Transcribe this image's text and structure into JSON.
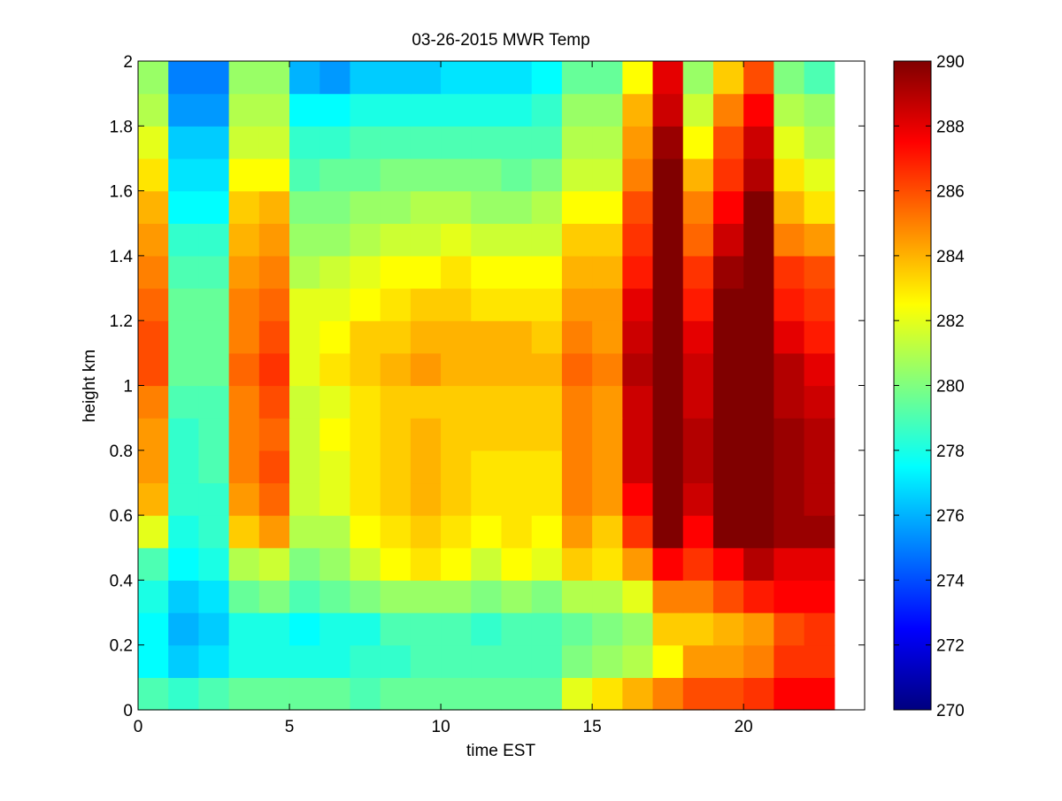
{
  "chart_data": {
    "type": "heatmap",
    "title": "03-26-2015 MWR Temp",
    "xlabel": "time EST",
    "ylabel": "height km",
    "xlim": [
      0,
      24
    ],
    "ylim": [
      0,
      2
    ],
    "x_ticks": [
      0,
      5,
      10,
      15,
      20
    ],
    "y_ticks": [
      0,
      0.2,
      0.4,
      0.6,
      0.8,
      1,
      1.2,
      1.4,
      1.6,
      1.8,
      2
    ],
    "colorbar": {
      "min": 270,
      "max": 290,
      "ticks": [
        270,
        272,
        274,
        276,
        278,
        280,
        282,
        284,
        286,
        288,
        290
      ],
      "colormap": "jet"
    },
    "time_hours": [
      0,
      1,
      2,
      3,
      4,
      5,
      6,
      7,
      8,
      9,
      10,
      11,
      12,
      13,
      14,
      15,
      16,
      17,
      18,
      19,
      20,
      21,
      22,
      23
    ],
    "height_km": [
      0,
      0.1,
      0.2,
      0.3,
      0.4,
      0.5,
      0.6,
      0.7,
      0.8,
      0.9,
      1.0,
      1.1,
      1.2,
      1.3,
      1.4,
      1.5,
      1.6,
      1.7,
      1.8,
      1.9,
      2.0
    ],
    "temperature_K": [
      [
        279.0,
        278.5,
        279.0,
        279.5,
        279.5,
        279.5,
        279.5,
        279.0,
        279.5,
        279.5,
        279.5,
        279.5,
        279.5,
        279.5,
        282.0,
        283.0,
        284.0,
        285.0,
        286.0,
        286.0,
        286.5,
        287.5,
        287.5,
        288.0
      ],
      [
        277.5,
        276.5,
        277.0,
        278.0,
        278.0,
        278.0,
        278.0,
        278.5,
        278.5,
        279.0,
        279.0,
        279.0,
        279.0,
        279.0,
        280.0,
        280.5,
        281.0,
        282.5,
        284.5,
        284.5,
        285.0,
        286.5,
        286.5,
        287.0
      ],
      [
        277.5,
        276.0,
        276.5,
        278.0,
        278.0,
        277.5,
        278.0,
        278.0,
        279.0,
        279.0,
        279.0,
        278.5,
        279.0,
        279.0,
        279.5,
        280.0,
        280.5,
        283.5,
        283.5,
        284.0,
        284.5,
        286.0,
        286.5,
        286.5
      ],
      [
        278.0,
        276.5,
        277.0,
        279.5,
        280.0,
        279.0,
        279.5,
        280.0,
        280.5,
        280.5,
        280.5,
        280.0,
        280.5,
        280.0,
        281.0,
        281.0,
        282.0,
        285.0,
        285.0,
        286.0,
        287.0,
        287.5,
        287.5,
        287.5
      ],
      [
        279.0,
        277.5,
        278.0,
        281.0,
        281.5,
        280.0,
        280.5,
        281.5,
        282.5,
        283.0,
        282.5,
        281.5,
        282.5,
        282.0,
        283.5,
        283.0,
        284.5,
        287.5,
        286.5,
        287.5,
        289.0,
        288.0,
        288.0,
        289.0
      ],
      [
        282.0,
        278.0,
        278.5,
        283.5,
        284.5,
        281.0,
        281.0,
        282.5,
        283.0,
        283.5,
        283.0,
        282.5,
        283.0,
        282.5,
        284.5,
        283.5,
        286.5,
        290.0,
        287.5,
        290.0,
        290.0,
        289.5,
        289.5,
        289.5
      ],
      [
        284.0,
        278.5,
        278.5,
        284.5,
        285.5,
        281.5,
        282.0,
        283.0,
        283.5,
        284.0,
        283.5,
        283.0,
        283.0,
        283.0,
        285.0,
        284.5,
        287.5,
        290.0,
        288.5,
        290.0,
        290.0,
        289.5,
        289.0,
        289.5
      ],
      [
        284.5,
        278.5,
        279.0,
        285.0,
        286.0,
        281.5,
        282.0,
        283.0,
        283.5,
        284.0,
        283.5,
        283.0,
        283.0,
        283.0,
        285.0,
        284.5,
        288.5,
        290.0,
        289.0,
        290.0,
        290.0,
        289.5,
        289.0,
        289.5
      ],
      [
        284.5,
        278.5,
        279.0,
        285.0,
        285.5,
        281.5,
        282.5,
        283.0,
        283.5,
        284.0,
        283.5,
        283.5,
        283.5,
        283.5,
        285.0,
        284.5,
        288.5,
        290.0,
        289.0,
        290.0,
        290.0,
        289.5,
        289.0,
        289.5
      ],
      [
        285.0,
        279.0,
        279.0,
        285.0,
        286.0,
        281.5,
        282.0,
        283.0,
        283.5,
        283.5,
        283.5,
        283.5,
        283.5,
        283.5,
        285.0,
        284.5,
        288.5,
        290.0,
        288.5,
        290.0,
        290.0,
        289.0,
        288.5,
        289.0
      ],
      [
        286.0,
        279.5,
        279.5,
        285.5,
        286.5,
        282.0,
        283.0,
        283.5,
        284.0,
        284.5,
        284.0,
        284.0,
        284.0,
        284.0,
        285.5,
        285.0,
        289.0,
        290.0,
        288.5,
        290.0,
        290.0,
        289.0,
        288.0,
        288.5
      ],
      [
        286.0,
        279.5,
        279.5,
        285.0,
        286.0,
        282.0,
        282.5,
        283.5,
        283.5,
        284.0,
        284.0,
        284.0,
        284.0,
        283.5,
        285.0,
        284.5,
        288.5,
        290.0,
        288.0,
        290.0,
        290.0,
        288.0,
        287.0,
        287.5
      ],
      [
        285.5,
        279.5,
        279.5,
        285.0,
        285.5,
        282.0,
        282.0,
        282.5,
        283.0,
        283.5,
        283.5,
        283.0,
        283.0,
        283.0,
        284.5,
        284.5,
        288.0,
        290.0,
        287.0,
        290.0,
        290.0,
        287.0,
        286.5,
        287.0
      ],
      [
        285.0,
        279.0,
        279.0,
        284.5,
        285.0,
        281.0,
        281.5,
        282.0,
        282.5,
        282.5,
        283.0,
        282.5,
        282.5,
        282.5,
        284.0,
        284.0,
        287.0,
        290.0,
        286.5,
        289.5,
        290.0,
        286.5,
        286.0,
        286.0
      ],
      [
        284.5,
        278.5,
        278.5,
        284.0,
        284.5,
        280.5,
        280.5,
        281.0,
        281.5,
        281.5,
        282.0,
        281.5,
        281.5,
        281.5,
        283.5,
        283.5,
        286.5,
        290.0,
        285.5,
        288.5,
        290.0,
        285.0,
        284.5,
        285.0
      ],
      [
        284.0,
        277.5,
        277.5,
        283.5,
        284.0,
        280.0,
        280.0,
        280.5,
        280.5,
        281.0,
        281.0,
        280.5,
        280.5,
        281.0,
        282.5,
        282.5,
        286.0,
        290.0,
        285.0,
        287.5,
        290.0,
        284.0,
        283.0,
        283.5
      ],
      [
        283.0,
        277.0,
        277.0,
        282.5,
        282.5,
        279.0,
        279.5,
        279.5,
        280.0,
        280.0,
        280.0,
        280.0,
        279.5,
        280.0,
        281.5,
        281.5,
        285.0,
        290.0,
        284.0,
        286.5,
        289.0,
        283.0,
        282.0,
        282.0
      ],
      [
        282.0,
        276.5,
        276.5,
        281.5,
        281.5,
        278.5,
        278.5,
        279.0,
        279.0,
        279.0,
        279.0,
        279.0,
        279.0,
        279.0,
        281.0,
        281.0,
        284.5,
        289.5,
        282.5,
        286.0,
        288.5,
        282.0,
        281.0,
        281.0
      ],
      [
        281.0,
        275.5,
        275.5,
        281.0,
        281.0,
        277.5,
        277.5,
        278.0,
        278.0,
        278.0,
        278.0,
        278.0,
        278.0,
        278.5,
        280.5,
        280.5,
        284.0,
        288.5,
        281.5,
        285.0,
        287.5,
        281.0,
        280.5,
        280.5
      ],
      [
        280.5,
        275.0,
        275.0,
        280.5,
        280.5,
        276.0,
        275.5,
        276.5,
        276.5,
        276.5,
        277.0,
        277.0,
        277.0,
        277.5,
        279.5,
        279.5,
        282.5,
        288.0,
        280.5,
        283.5,
        286.0,
        280.0,
        279.0,
        279.0
      ],
      [
        280.5,
        274.0,
        274.0,
        279.5,
        279.5,
        275.0,
        275.0,
        275.5,
        275.5,
        275.5,
        276.0,
        276.0,
        276.0,
        276.0,
        278.5,
        279.0,
        281.0,
        287.0,
        280.5,
        282.5,
        285.0,
        279.0,
        277.5,
        277.5
      ]
    ]
  }
}
